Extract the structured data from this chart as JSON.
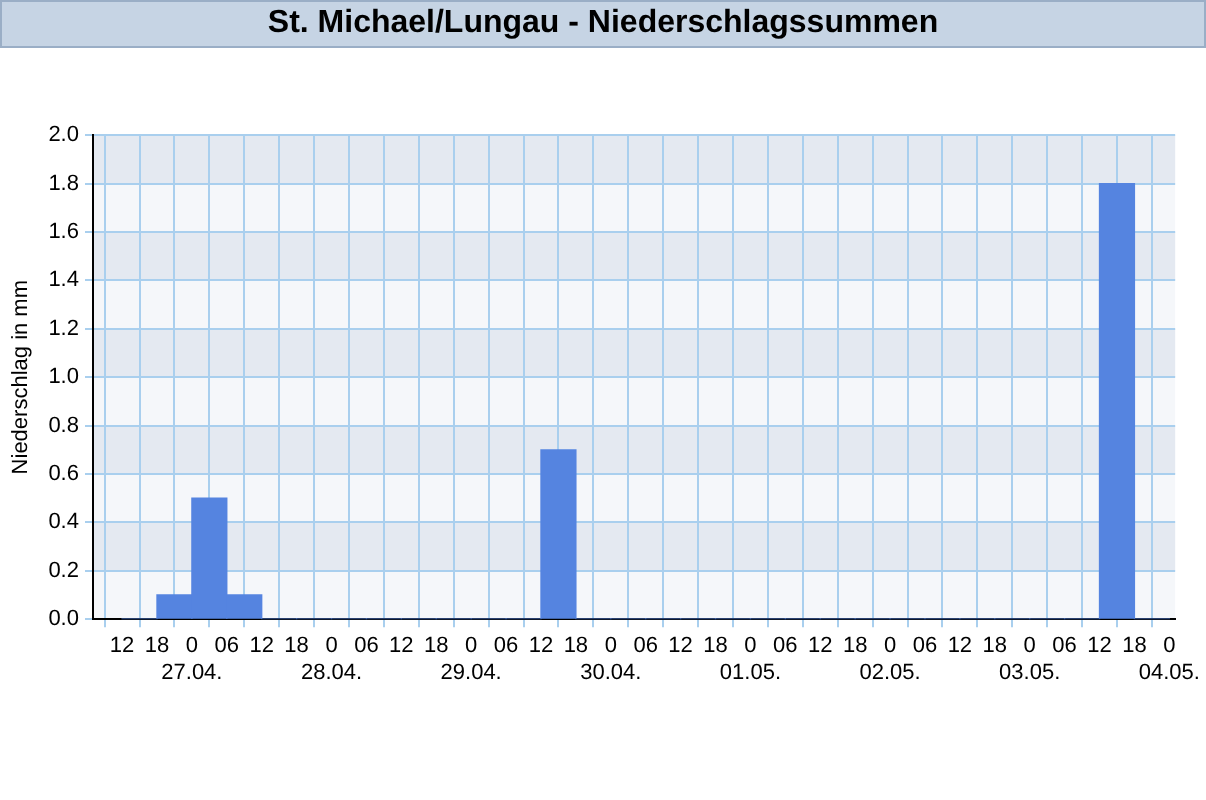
{
  "chart_data": {
    "type": "histogram",
    "title": "St. Michael/Lungau - Niederschlagssummen",
    "ylabel": "Niederschlag in mm",
    "bins": [
      "--04-26T12:00",
      "--04-26T18:00",
      "--04-27T00:00",
      "--04-27T06:00",
      "--04-27T12:00",
      "--04-27T18:00",
      "--04-28T00:00",
      "--04-28T06:00",
      "--04-28T12:00",
      "--04-28T18:00",
      "--04-29T00:00",
      "--04-29T06:00",
      "--04-29T12:00",
      "--04-29T18:00",
      "--04-30T00:00",
      "--04-30T06:00",
      "--04-30T12:00",
      "--04-30T18:00",
      "--05-01T00:00",
      "--05-01T06:00",
      "--05-01T12:00",
      "--05-01T18:00",
      "--05-02T00:00",
      "--05-02T06:00",
      "--05-02T12:00",
      "--05-02T18:00",
      "--05-03T00:00",
      "--05-03T06:00",
      "--05-03T12:00",
      "--05-03T18:00",
      "--05-04T00:00"
    ],
    "values": [
      0,
      0.1,
      0.5,
      0.1,
      0,
      0,
      0,
      0,
      0,
      0,
      0,
      0,
      0.7,
      0,
      0,
      0,
      0,
      0,
      0,
      0,
      0,
      0,
      0,
      0,
      0,
      0,
      0,
      0,
      1.8,
      0
    ],
    "color": "#5584e0",
    "xlim": [
      "--04-26T07:00",
      "--05-04T01:00"
    ],
    "xticks": [
      {
        "value": "--04-26T12:00",
        "label": "12"
      },
      {
        "value": "--04-26T18:00",
        "label": "18"
      },
      {
        "value": "--04-27T00:00",
        "label": "0\n27.04."
      },
      {
        "value": "--04-27T06:00",
        "label": "06"
      },
      {
        "value": "--04-27T12:00",
        "label": "12"
      },
      {
        "value": "--04-27T18:00",
        "label": "18"
      },
      {
        "value": "--04-28T00:00",
        "label": "0\n28.04."
      },
      {
        "value": "--04-28T06:00",
        "label": "06"
      },
      {
        "value": "--04-28T12:00",
        "label": "12"
      },
      {
        "value": "--04-28T18:00",
        "label": "18"
      },
      {
        "value": "--04-29T00:00",
        "label": "0\n29.04."
      },
      {
        "value": "--04-29T06:00",
        "label": "06"
      },
      {
        "value": "--04-29T12:00",
        "label": "12"
      },
      {
        "value": "--04-29T18:00",
        "label": "18"
      },
      {
        "value": "--04-30T00:00",
        "label": "0\n30.04."
      },
      {
        "value": "--04-30T06:00",
        "label": "06"
      },
      {
        "value": "--04-30T12:00",
        "label": "12"
      },
      {
        "value": "--04-30T18:00",
        "label": "18"
      },
      {
        "value": "--05-01T00:00",
        "label": "0\n01.05."
      },
      {
        "value": "--05-01T06:00",
        "label": "06"
      },
      {
        "value": "--05-01T12:00",
        "label": "12"
      },
      {
        "value": "--05-01T18:00",
        "label": "18"
      },
      {
        "value": "--05-02T00:00",
        "label": "0\n02.05."
      },
      {
        "value": "--05-02T06:00",
        "label": "06"
      },
      {
        "value": "--05-02T12:00",
        "label": "12"
      },
      {
        "value": "--05-02T18:00",
        "label": "18"
      },
      {
        "value": "--05-03T00:00",
        "label": "0\n03.05."
      },
      {
        "value": "--05-03T06:00",
        "label": "06"
      },
      {
        "value": "--05-03T12:00",
        "label": "12"
      },
      {
        "value": "--05-03T18:00",
        "label": "18"
      },
      {
        "value": "--05-04T00:00",
        "label": "0\n04.05."
      }
    ],
    "ylim": [
      0,
      2
    ],
    "yticks": [
      {
        "value": 0,
        "label": "0.0"
      },
      {
        "value": 0.2,
        "label": "0.2"
      },
      {
        "value": 0.4,
        "label": "0.4"
      },
      {
        "value": 0.6,
        "label": "0.6"
      },
      {
        "value": 0.8,
        "label": "0.8"
      },
      {
        "value": 1,
        "label": "1.0"
      },
      {
        "value": 1.2,
        "label": "1.2"
      },
      {
        "value": 1.4,
        "label": "1.4"
      },
      {
        "value": 1.6,
        "label": "1.6"
      },
      {
        "value": 1.8,
        "label": "1.8"
      },
      {
        "value": 2,
        "label": "2.0"
      }
    ],
    "grid": true,
    "legend": false
  }
}
